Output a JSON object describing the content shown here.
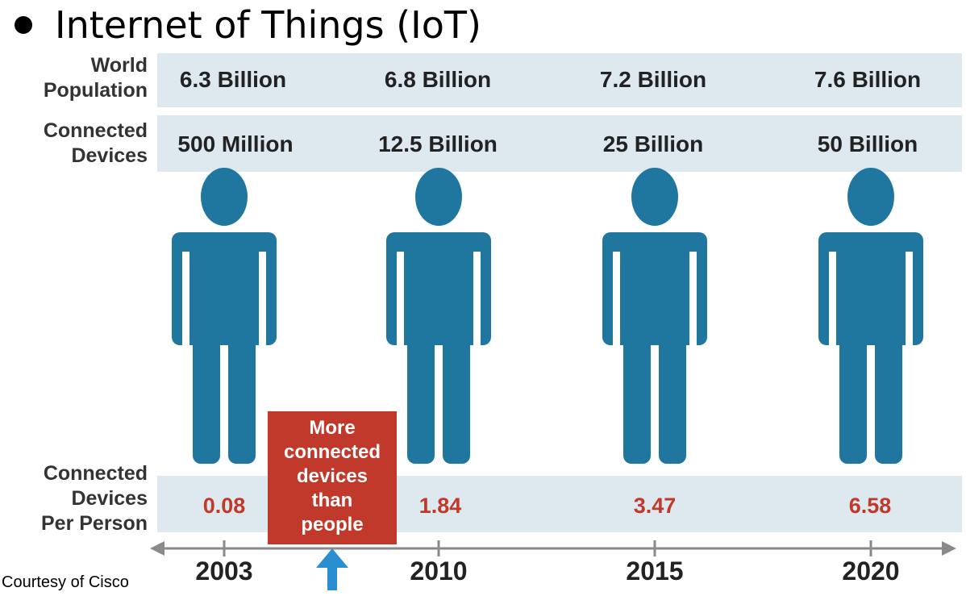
{
  "title": "Internet of Things (IoT)",
  "credit": "Courtesy of Cisco",
  "callout": [
    "More",
    "connected",
    "devices",
    "than",
    "people"
  ],
  "colors": {
    "person": "#1f77a0",
    "band": "#dde8ef",
    "callout": "#c0392b",
    "arrow": "#2a8fd0",
    "axis": "#8a8a8a"
  },
  "chart_data": {
    "type": "table",
    "categories": [
      "2003",
      "2010",
      "2015",
      "2020"
    ],
    "rows": [
      {
        "label": [
          "World",
          "Population"
        ],
        "values": [
          "6.3 Billion",
          "6.8 Billion",
          "7.2 Billion",
          "7.6 Billion"
        ]
      },
      {
        "label": [
          "Connected",
          "Devices"
        ],
        "values": [
          "500 Million",
          "12.5 Billion",
          "25 Billion",
          "50 Billion"
        ]
      },
      {
        "label": [
          "Connected",
          "Devices",
          "Per Person"
        ],
        "values": [
          "0.08",
          "1.84",
          "3.47",
          "6.58"
        ]
      }
    ],
    "annotation": "More connected devices than people"
  }
}
